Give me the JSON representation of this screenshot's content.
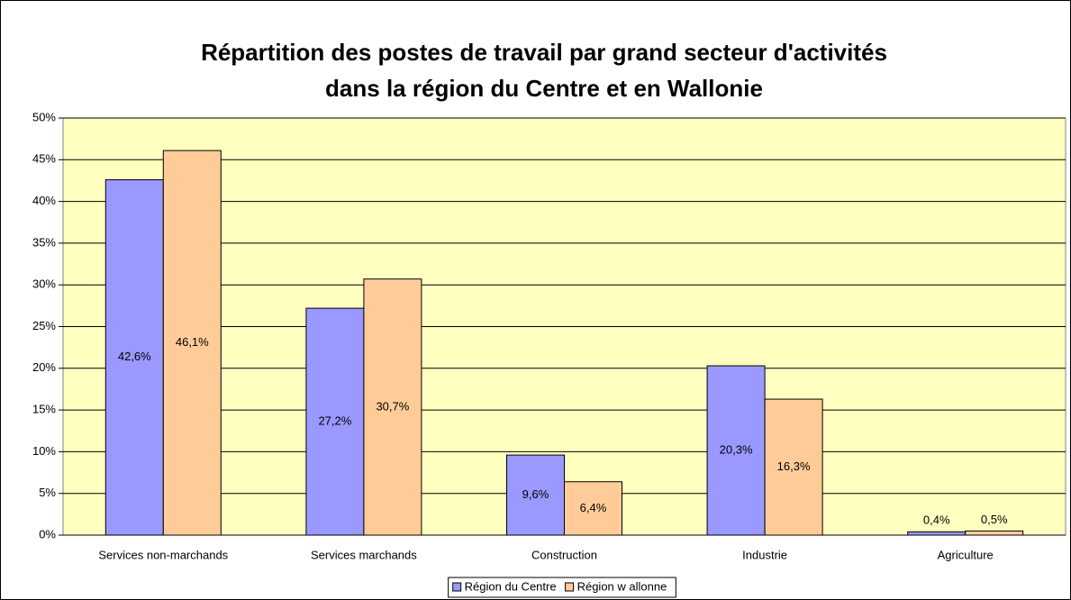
{
  "chart_data": {
    "type": "bar",
    "title": [
      "Répartition des postes de travail par grand secteur d'activités",
      "dans la région du Centre et en Wallonie"
    ],
    "categories": [
      "Services non-marchands",
      "Services marchands",
      "Construction",
      "Industrie",
      "Agriculture"
    ],
    "series": [
      {
        "name": "Région du Centre",
        "color": "#9999ff",
        "values": [
          42.6,
          27.2,
          9.6,
          20.3,
          0.4
        ],
        "value_labels": [
          "42,6%",
          "27,2%",
          "9,6%",
          "20,3%",
          "0,4%"
        ]
      },
      {
        "name": "Région w allonne",
        "color": "#ffcc99",
        "values": [
          46.1,
          30.7,
          6.4,
          16.3,
          0.5
        ],
        "value_labels": [
          "46,1%",
          "30,7%",
          "6,4%",
          "16,3%",
          "0,5%"
        ]
      }
    ],
    "ylim": [
      0,
      50
    ],
    "yticks": [
      {
        "value": 0,
        "label": "0%"
      },
      {
        "value": 5,
        "label": "5%"
      },
      {
        "value": 10,
        "label": "10%"
      },
      {
        "value": 15,
        "label": "15%"
      },
      {
        "value": 20,
        "label": "20%"
      },
      {
        "value": 25,
        "label": "25%"
      },
      {
        "value": 30,
        "label": "30%"
      },
      {
        "value": 35,
        "label": "35%"
      },
      {
        "value": 40,
        "label": "40%"
      },
      {
        "value": 45,
        "label": "45%"
      },
      {
        "value": 50,
        "label": "50%"
      }
    ],
    "grid": true,
    "plot_background": "#ffffc0",
    "legend": "bottom"
  }
}
